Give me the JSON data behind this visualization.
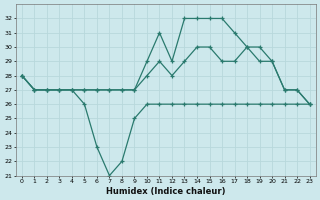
{
  "xlabel": "Humidex (Indice chaleur)",
  "hours": [
    0,
    1,
    2,
    3,
    4,
    5,
    6,
    7,
    8,
    9,
    10,
    11,
    12,
    13,
    14,
    15,
    16,
    17,
    18,
    19,
    20,
    21,
    22,
    23
  ],
  "line_top": [
    28,
    27,
    27,
    27,
    27,
    27,
    27,
    27,
    27,
    27,
    29,
    31,
    29,
    32,
    32,
    32,
    32,
    31,
    30,
    30,
    29,
    27,
    27,
    26
  ],
  "line_mid": [
    28,
    27,
    27,
    27,
    27,
    27,
    27,
    27,
    27,
    27,
    28,
    29,
    28,
    29,
    30,
    30,
    29,
    29,
    30,
    29,
    29,
    27,
    27,
    26
  ],
  "line_bot": [
    28,
    27,
    27,
    27,
    27,
    26,
    23,
    21,
    22,
    25,
    26,
    26,
    26,
    26,
    26,
    26,
    26,
    26,
    26,
    26,
    26,
    26,
    26,
    26
  ],
  "ylim_min": 21,
  "ylim_max": 33,
  "yticks": [
    21,
    22,
    23,
    24,
    25,
    26,
    27,
    28,
    29,
    30,
    31,
    32
  ],
  "xticks": [
    0,
    1,
    2,
    3,
    4,
    5,
    6,
    7,
    8,
    9,
    10,
    11,
    12,
    13,
    14,
    15,
    16,
    17,
    18,
    19,
    20,
    21,
    22,
    23
  ],
  "color": "#2a7a6e",
  "bg_color": "#cde8ec",
  "grid_color": "#b8d8dc",
  "linewidth": 0.9,
  "markersize": 3.5
}
